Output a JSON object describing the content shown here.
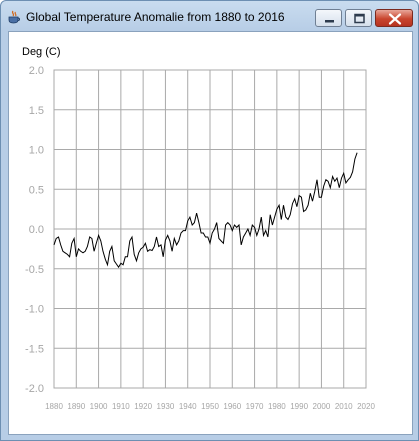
{
  "window": {
    "title": "Global Temperature Anomalie from 1880 to 2016",
    "icon": "java-cup-icon",
    "controls": [
      "minimize-icon",
      "maximize-icon",
      "close-icon"
    ]
  },
  "chart_data": {
    "type": "line",
    "title": "",
    "xlabel": "",
    "ylabel": "Deg (C)",
    "xlim": [
      1880,
      2020
    ],
    "ylim": [
      -2.0,
      2.0
    ],
    "grid": true,
    "line_color": "#000000",
    "grid_color": "#a9a9a9",
    "x_ticks": [
      "1880",
      "1890",
      "1900",
      "1910",
      "1920",
      "1930",
      "1940",
      "1950",
      "1960",
      "1970",
      "1980",
      "1990",
      "2000",
      "2010",
      "2020"
    ],
    "y_ticks": [
      "2.0",
      "1.5",
      "1.0",
      "0.5",
      "0.0",
      "-0.5",
      "-1.0",
      "-1.5",
      "-2.0"
    ],
    "series": [
      {
        "x": [
          1880,
          1881,
          1882,
          1883,
          1884,
          1885,
          1886,
          1887,
          1888,
          1889,
          1890,
          1891,
          1892,
          1893,
          1894,
          1895,
          1896,
          1897,
          1898,
          1899,
          1900,
          1901,
          1902,
          1903,
          1904,
          1905,
          1906,
          1907,
          1908,
          1909,
          1910,
          1911,
          1912,
          1913,
          1914,
          1915,
          1916,
          1917,
          1918,
          1919,
          1920,
          1921,
          1922,
          1923,
          1924,
          1925,
          1926,
          1927,
          1928,
          1929,
          1930,
          1931,
          1932,
          1933,
          1934,
          1935,
          1936,
          1937,
          1938,
          1939,
          1940,
          1941,
          1942,
          1943,
          1944,
          1945,
          1946,
          1947,
          1948,
          1949,
          1950,
          1951,
          1952,
          1953,
          1954,
          1955,
          1956,
          1957,
          1958,
          1959,
          1960,
          1961,
          1962,
          1963,
          1964,
          1965,
          1966,
          1967,
          1968,
          1969,
          1970,
          1971,
          1972,
          1973,
          1974,
          1975,
          1976,
          1977,
          1978,
          1979,
          1980,
          1981,
          1982,
          1983,
          1984,
          1985,
          1986,
          1987,
          1988,
          1989,
          1990,
          1991,
          1992,
          1993,
          1994,
          1995,
          1996,
          1997,
          1998,
          1999,
          2000,
          2001,
          2002,
          2003,
          2004,
          2005,
          2006,
          2007,
          2008,
          2009,
          2010,
          2011,
          2012,
          2013,
          2014,
          2015,
          2016
        ],
        "y": [
          -0.2,
          -0.12,
          -0.1,
          -0.2,
          -0.28,
          -0.3,
          -0.32,
          -0.35,
          -0.18,
          -0.12,
          -0.35,
          -0.25,
          -0.28,
          -0.3,
          -0.28,
          -0.22,
          -0.1,
          -0.12,
          -0.28,
          -0.18,
          -0.08,
          -0.15,
          -0.28,
          -0.38,
          -0.45,
          -0.28,
          -0.22,
          -0.4,
          -0.44,
          -0.48,
          -0.43,
          -0.45,
          -0.35,
          -0.35,
          -0.15,
          -0.1,
          -0.32,
          -0.4,
          -0.3,
          -0.25,
          -0.23,
          -0.18,
          -0.28,
          -0.26,
          -0.27,
          -0.22,
          -0.1,
          -0.22,
          -0.2,
          -0.35,
          -0.14,
          -0.08,
          -0.15,
          -0.28,
          -0.12,
          -0.2,
          -0.15,
          -0.05,
          -0.02,
          -0.02,
          0.1,
          0.15,
          0.05,
          0.08,
          0.2,
          0.08,
          -0.05,
          -0.05,
          -0.1,
          -0.1,
          -0.18,
          -0.05,
          0.0,
          0.08,
          -0.12,
          -0.15,
          -0.18,
          0.05,
          0.08,
          0.05,
          -0.02,
          0.05,
          0.02,
          0.05,
          -0.2,
          -0.1,
          -0.05,
          0.0,
          -0.08,
          0.05,
          0.02,
          -0.08,
          0.0,
          0.15,
          -0.08,
          -0.02,
          -0.1,
          0.18,
          0.05,
          0.15,
          0.25,
          0.3,
          0.12,
          0.3,
          0.15,
          0.12,
          0.18,
          0.32,
          0.38,
          0.28,
          0.42,
          0.4,
          0.22,
          0.24,
          0.3,
          0.45,
          0.35,
          0.47,
          0.62,
          0.4,
          0.4,
          0.54,
          0.62,
          0.6,
          0.52,
          0.66,
          0.6,
          0.64,
          0.52,
          0.64,
          0.7,
          0.58,
          0.62,
          0.65,
          0.72,
          0.88,
          0.96
        ]
      }
    ]
  }
}
